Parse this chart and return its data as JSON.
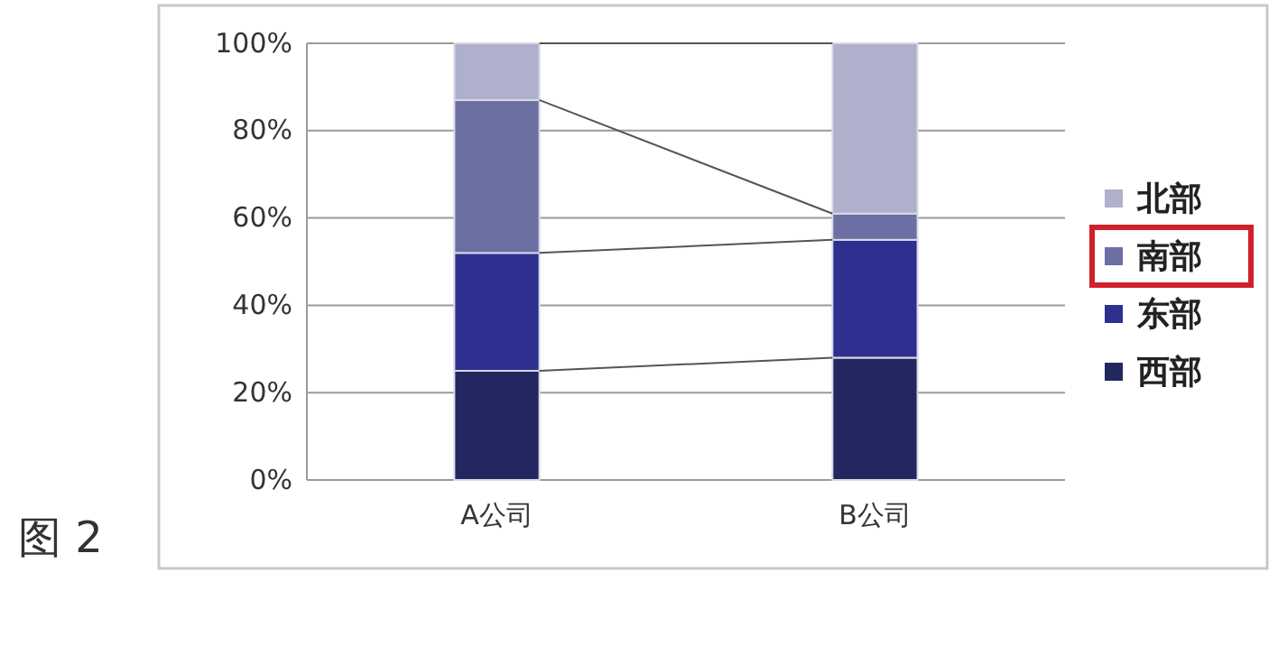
{
  "chart_data": {
    "type": "bar",
    "stacked": true,
    "categories": [
      "A公司",
      "B公司"
    ],
    "series": [
      {
        "name": "西部",
        "color": "#23275f",
        "values": [
          25,
          28
        ]
      },
      {
        "name": "东部",
        "color": "#2e3090",
        "values": [
          27,
          27
        ]
      },
      {
        "name": "南部",
        "color": "#6c6fa2",
        "values": [
          35,
          6
        ]
      },
      {
        "name": "北部",
        "color": "#aeb0cc",
        "values": [
          13,
          39
        ]
      }
    ],
    "ylim": [
      0,
      100
    ],
    "yticks": [
      {
        "value": 0,
        "label": "0%"
      },
      {
        "value": 20,
        "label": "20%"
      },
      {
        "value": 40,
        "label": "40%"
      },
      {
        "value": 60,
        "label": "60%"
      },
      {
        "value": 80,
        "label": "80%"
      },
      {
        "value": 100,
        "label": "100%"
      }
    ],
    "grid": "y",
    "legend": "right",
    "annotations": [
      "图 2"
    ]
  }
}
